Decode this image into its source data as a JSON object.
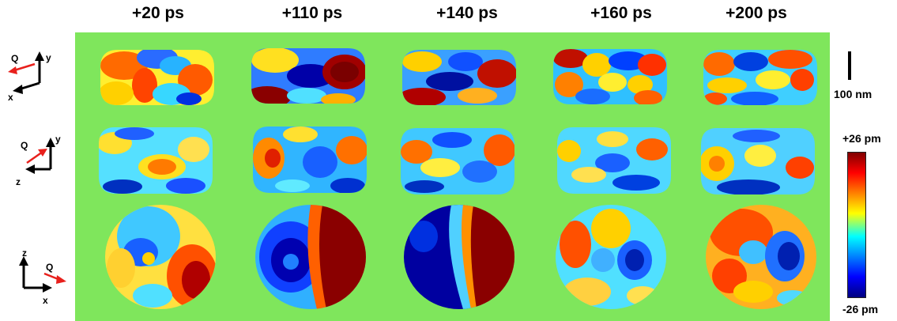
{
  "time_labels": [
    "+20 ps",
    "+110 ps",
    "+140 ps",
    "+160 ps",
    "+200 ps"
  ],
  "rows": [
    {
      "name": "xy-projection",
      "gizmo": {
        "horizontal": "x",
        "vertical": "y",
        "vector": "Q"
      }
    },
    {
      "name": "zy-projection",
      "gizmo": {
        "horizontal": "z",
        "vertical": "y",
        "vector": "Q"
      }
    },
    {
      "name": "xz-projection",
      "gizmo": {
        "horizontal": "x",
        "vertical": "z",
        "vector": "Q"
      }
    }
  ],
  "scale_bar": {
    "label": "100 nm"
  },
  "colorbar": {
    "max_label": "+26 pm",
    "min_label": "-26 pm"
  },
  "colors": {
    "background": "#7fe65c",
    "vector": "#e8201c"
  }
}
